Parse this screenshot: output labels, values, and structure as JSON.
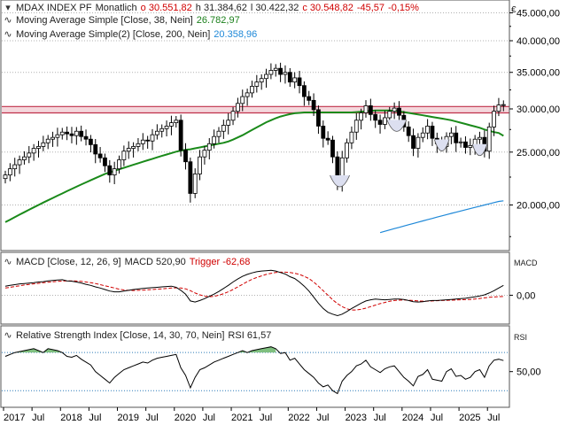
{
  "header": {
    "symbol": "MDAX INDEX PF",
    "interval": "Monatlich",
    "open": "o 30.551,82",
    "high": "h 31.384,62",
    "low": "l 30.422,32",
    "close": "c 30.548,82",
    "change_abs": "-45,57",
    "change_pct": "-0,15%",
    "currency": "€"
  },
  "indicators": {
    "sma1_label": "Moving Average Simple [Close, 38, Nein]",
    "sma1_value": "26.782,97",
    "sma2_label": "Moving Average Simple(2) [Close, 200, Nein]",
    "sma2_value": "20.358,96",
    "macd_label": "MACD [Close, 12, 26, 9]",
    "macd_value": "MACD 520,90",
    "macd_trigger": "Trigger -62,68",
    "macd_axis": "MACD",
    "rsi_label": "Relative Strength Index [Close, 14, 30, 70, Nein]",
    "rsi_value": "RSI 61,57",
    "rsi_axis": "RSI"
  },
  "colors": {
    "candle_up": "#ffffff",
    "candle_down": "#000000",
    "sma38": "#1a8a1a",
    "sma200": "#1e88d8",
    "macd_trigger": "#d00000",
    "resistance_band": "#c0304a",
    "rsi_fill": "#7fbf7f"
  },
  "chart_data": [
    {
      "type": "candlestick",
      "y_ticks": [
        "45.000,00",
        "40.000,00",
        "35.000,00",
        "30.000,00",
        "25.000,00",
        "20.000,00"
      ],
      "y_tick_values": [
        45000,
        40000,
        35000,
        30000,
        25000,
        20000
      ],
      "ylim": [
        16500,
        47500
      ],
      "log_scale": true,
      "grid": true,
      "x_ticks": [
        "2017",
        "Jul",
        "2018",
        "Jul",
        "2019",
        "Jul",
        "2020",
        "Jul",
        "2021",
        "Jul",
        "2022",
        "Jul",
        "2023",
        "Jul",
        "2024",
        "Jul",
        "2025",
        "Jul"
      ],
      "resistance_band": [
        29500,
        30300
      ],
      "closes": [
        22700,
        23300,
        23700,
        24200,
        24500,
        24900,
        25400,
        25600,
        26000,
        26400,
        26600,
        26900,
        27200,
        27000,
        26800,
        27300,
        26700,
        26400,
        25800,
        24800,
        24400,
        23600,
        22700,
        23300,
        24200,
        25100,
        25400,
        25600,
        25900,
        26300,
        26200,
        26900,
        27300,
        27600,
        27900,
        28300,
        28600,
        25200,
        24000,
        21000,
        22800,
        24500,
        25200,
        25900,
        26700,
        27300,
        28000,
        28600,
        29700,
        30700,
        31600,
        32100,
        33000,
        33600,
        34100,
        34700,
        35300,
        35600,
        34700,
        35000,
        33600,
        34200,
        33100,
        31600,
        31100,
        29900,
        27900,
        26500,
        26300,
        24500,
        22000,
        24400,
        26000,
        27200,
        28600,
        29500,
        30400,
        29300,
        28600,
        28100,
        28900,
        29700,
        30100,
        29200,
        27800,
        26800,
        25400,
        26600,
        27100,
        27900,
        26500,
        25900,
        25600,
        26700,
        27100,
        26000,
        26100,
        25500,
        25700,
        26400,
        26600,
        25100,
        27800,
        29700,
        30500,
        30549
      ],
      "sma38": [
        18600,
        18800,
        19000,
        19200,
        19400,
        19600,
        19800,
        20000,
        20200,
        20400,
        20600,
        20800,
        21000,
        21200,
        21400,
        21600,
        21800,
        22000,
        22200,
        22400,
        22600,
        22800,
        22950,
        23100,
        23250,
        23400,
        23550,
        23700,
        23850,
        24000,
        24150,
        24300,
        24450,
        24600,
        24750,
        24900,
        25050,
        25150,
        25250,
        25300,
        25400,
        25500,
        25600,
        25700,
        25800,
        25900,
        26000,
        26150,
        26350,
        26600,
        26850,
        27150,
        27450,
        27750,
        28050,
        28350,
        28600,
        28850,
        29050,
        29200,
        29350,
        29450,
        29500,
        29550,
        29550,
        29550,
        29550,
        29550,
        29550,
        29550,
        29550,
        29550,
        29550,
        29550,
        29600,
        29650,
        29700,
        29750,
        29800,
        29800,
        29800,
        29800,
        29750,
        29700,
        29600,
        29500,
        29400,
        29300,
        29200,
        29100,
        29000,
        28900,
        28800,
        28700,
        28600,
        28450,
        28300,
        28150,
        28000,
        27850,
        27700,
        27500,
        27350,
        27200,
        27100,
        26783
      ],
      "sma200": [
        17800,
        17900,
        18000,
        18100,
        18200,
        18300,
        18400,
        18500,
        18600,
        18700,
        18800,
        18900,
        19000,
        19100,
        19200,
        19300,
        19400,
        19500,
        19600,
        19700,
        19800,
        19900,
        20000,
        20100,
        20200,
        20300,
        20359
      ]
    },
    {
      "type": "line",
      "name": "MACD",
      "y_ticks": [
        "0,00"
      ],
      "macd": [
        480,
        520,
        560,
        600,
        620,
        640,
        660,
        700,
        720,
        760,
        780,
        800,
        820,
        760,
        740,
        700,
        650,
        580,
        520,
        440,
        380,
        300,
        220,
        180,
        180,
        220,
        260,
        300,
        330,
        360,
        380,
        400,
        420,
        440,
        460,
        480,
        420,
        260,
        60,
        -300,
        -360,
        -280,
        -180,
        -60,
        60,
        200,
        360,
        520,
        700,
        860,
        1000,
        1100,
        1180,
        1240,
        1280,
        1300,
        1320,
        1280,
        1200,
        1120,
        980,
        880,
        700,
        480,
        220,
        -100,
        -420,
        -700,
        -900,
        -1000,
        -1080,
        -1000,
        -860,
        -700,
        -560,
        -420,
        -300,
        -240,
        -200,
        -220,
        -240,
        -220,
        -200,
        -200,
        -220,
        -280,
        -340,
        -360,
        -340,
        -300,
        -280,
        -280,
        -260,
        -240,
        -220,
        -200,
        -180,
        -160,
        -120,
        -80,
        -40,
        20,
        120,
        240,
        380,
        521
      ],
      "trigger": [
        380,
        420,
        460,
        500,
        540,
        570,
        600,
        630,
        660,
        690,
        710,
        730,
        750,
        760,
        760,
        750,
        730,
        700,
        660,
        620,
        560,
        500,
        440,
        380,
        320,
        280,
        260,
        250,
        260,
        270,
        290,
        300,
        320,
        340,
        360,
        380,
        390,
        380,
        340,
        240,
        120,
        20,
        -50,
        -80,
        -60,
        0,
        80,
        180,
        300,
        440,
        580,
        720,
        840,
        940,
        1020,
        1100,
        1160,
        1200,
        1220,
        1220,
        1200,
        1160,
        1100,
        1000,
        880,
        700,
        480,
        240,
        0,
        -240,
        -440,
        -600,
        -720,
        -780,
        -780,
        -740,
        -680,
        -600,
        -520,
        -440,
        -380,
        -320,
        -280,
        -260,
        -250,
        -260,
        -280,
        -300,
        -310,
        -310,
        -300,
        -290,
        -280,
        -270,
        -260,
        -250,
        -240,
        -230,
        -220,
        -200,
        -170,
        -140,
        -110,
        -90,
        -75,
        -63
      ]
    },
    {
      "type": "line",
      "name": "RSI",
      "y_ticks": [
        "50,00"
      ],
      "levels": [
        30,
        70
      ],
      "rsi": [
        66,
        68,
        70,
        71,
        72,
        73,
        74,
        72,
        70,
        74,
        73,
        72,
        70,
        66,
        65,
        67,
        63,
        60,
        57,
        50,
        46,
        42,
        38,
        44,
        48,
        52,
        54,
        56,
        58,
        60,
        59,
        62,
        64,
        65,
        66,
        67,
        68,
        54,
        46,
        33,
        44,
        52,
        54,
        57,
        60,
        62,
        64,
        66,
        68,
        70,
        72,
        70,
        72,
        73,
        74,
        75,
        76,
        74,
        69,
        70,
        62,
        64,
        58,
        52,
        48,
        44,
        38,
        34,
        36,
        30,
        27,
        40,
        46,
        50,
        56,
        58,
        62,
        55,
        52,
        49,
        53,
        55,
        56,
        50,
        44,
        40,
        35,
        45,
        47,
        52,
        42,
        41,
        40,
        50,
        53,
        45,
        46,
        42,
        44,
        50,
        52,
        44,
        56,
        62,
        63,
        61.57
      ]
    }
  ]
}
